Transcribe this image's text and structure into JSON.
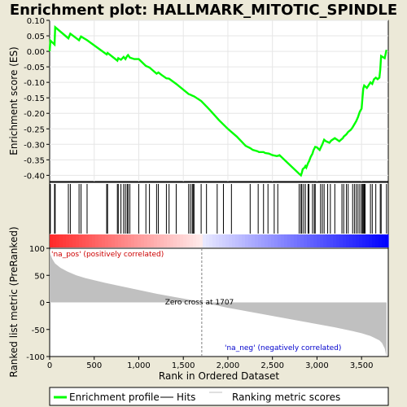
{
  "chart_data": {
    "type": "line",
    "title": "Enrichment plot: HALLMARK_MITOTIC_SPINDLE",
    "xlabel": "Rank in Ordered Dataset",
    "ylabel_top": "Enrichment score (ES)",
    "ylabel_bottom": "Ranked list metric (PreRanked)",
    "xlim": [
      0,
      3800
    ],
    "ylim_top": [
      -0.42,
      0.1
    ],
    "ylim_bottom": [
      -100,
      100
    ],
    "x_ticks": [
      {
        "v": 0,
        "label": "0"
      },
      {
        "v": 500,
        "label": "500"
      },
      {
        "v": 1000,
        "label": "1,000"
      },
      {
        "v": 1500,
        "label": "1,500"
      },
      {
        "v": 2000,
        "label": "2,000"
      },
      {
        "v": 2500,
        "label": "2,500"
      },
      {
        "v": 3000,
        "label": "3,000"
      },
      {
        "v": 3500,
        "label": "3,500"
      }
    ],
    "y_ticks_top": [
      {
        "v": 0.1,
        "label": "0.10"
      },
      {
        "v": 0.05,
        "label": "0.05"
      },
      {
        "v": 0.0,
        "label": "0.00"
      },
      {
        "v": -0.05,
        "label": "-0.05"
      },
      {
        "v": -0.1,
        "label": "-0.10"
      },
      {
        "v": -0.15,
        "label": "-0.15"
      },
      {
        "v": -0.2,
        "label": "-0.20"
      },
      {
        "v": -0.25,
        "label": "-0.25"
      },
      {
        "v": -0.3,
        "label": "-0.30"
      },
      {
        "v": -0.35,
        "label": "-0.35"
      },
      {
        "v": -0.4,
        "label": "-0.40"
      }
    ],
    "y_ticks_bottom": [
      {
        "v": 100,
        "label": "100"
      },
      {
        "v": 50,
        "label": "50"
      },
      {
        "v": 0,
        "label": "0"
      },
      {
        "v": -50,
        "label": "-50"
      },
      {
        "v": -100,
        "label": "-100"
      }
    ],
    "enrichment_profile": {
      "name": "Enrichment profile",
      "color": "#00ff00",
      "x": [
        0,
        8,
        55,
        62,
        210,
        232,
        330,
        352,
        420,
        640,
        650,
        760,
        770,
        800,
        830,
        850,
        870,
        880,
        900,
        950,
        1000,
        1080,
        1120,
        1200,
        1220,
        1250,
        1310,
        1340,
        1420,
        1560,
        1580,
        1600,
        1620,
        1700,
        1800,
        1900,
        2000,
        2100,
        2200,
        2250,
        2280,
        2330,
        2350,
        2400,
        2420,
        2460,
        2500,
        2550,
        2580,
        2800,
        2820,
        2830,
        2840,
        2860,
        2870,
        2880,
        2900,
        2910,
        2930,
        2950,
        2960,
        2980,
        3000,
        3030,
        3060,
        3080,
        3100,
        3140,
        3160,
        3200,
        3250,
        3290,
        3300,
        3330,
        3350,
        3380,
        3400,
        3420,
        3440,
        3460,
        3480,
        3500,
        3510,
        3520,
        3530,
        3560,
        3600,
        3620,
        3640,
        3660,
        3680,
        3700,
        3710,
        3720,
        3760,
        3780
      ],
      "y": [
        0.0,
        0.035,
        0.022,
        0.078,
        0.042,
        0.057,
        0.036,
        0.048,
        0.036,
        -0.01,
        -0.005,
        -0.03,
        -0.022,
        -0.027,
        -0.018,
        -0.025,
        -0.015,
        -0.012,
        -0.02,
        -0.025,
        -0.025,
        -0.047,
        -0.052,
        -0.072,
        -0.068,
        -0.075,
        -0.087,
        -0.088,
        -0.105,
        -0.138,
        -0.14,
        -0.143,
        -0.145,
        -0.16,
        -0.19,
        -0.222,
        -0.25,
        -0.275,
        -0.305,
        -0.312,
        -0.318,
        -0.322,
        -0.325,
        -0.325,
        -0.328,
        -0.33,
        -0.335,
        -0.338,
        -0.335,
        -0.395,
        -0.4,
        -0.392,
        -0.38,
        -0.375,
        -0.37,
        -0.375,
        -0.36,
        -0.355,
        -0.34,
        -0.33,
        -0.32,
        -0.308,
        -0.31,
        -0.318,
        -0.3,
        -0.285,
        -0.29,
        -0.295,
        -0.288,
        -0.28,
        -0.29,
        -0.28,
        -0.275,
        -0.268,
        -0.26,
        -0.253,
        -0.245,
        -0.235,
        -0.225,
        -0.212,
        -0.195,
        -0.185,
        -0.15,
        -0.12,
        -0.11,
        -0.118,
        -0.1,
        -0.105,
        -0.09,
        -0.085,
        -0.09,
        -0.085,
        -0.06,
        -0.015,
        -0.022,
        0.005
      ]
    },
    "hits": {
      "name": "Hits",
      "color": "#000000",
      "x": [
        8,
        55,
        62,
        210,
        232,
        330,
        352,
        420,
        640,
        650,
        760,
        770,
        800,
        830,
        850,
        870,
        880,
        900,
        1000,
        1080,
        1120,
        1200,
        1220,
        1310,
        1340,
        1420,
        1560,
        1580,
        1600,
        1610,
        1620,
        1700,
        1760,
        1880,
        1950,
        2040,
        2250,
        2340,
        2400,
        2450,
        2520,
        2560,
        2800,
        2820,
        2830,
        2850,
        2870,
        2900,
        2910,
        2950,
        2970,
        2980,
        3040,
        3060,
        3080,
        3120,
        3150,
        3200,
        3280,
        3300,
        3330,
        3350,
        3400,
        3420,
        3440,
        3460,
        3480,
        3500,
        3510,
        3520,
        3530,
        3540,
        3600,
        3620,
        3660,
        3710,
        3720,
        3780
      ]
    },
    "ranking_metric": {
      "name": "Ranking metric scores",
      "color": "#c0c0c0",
      "x": [
        0,
        10,
        30,
        60,
        120,
        200,
        300,
        400,
        500,
        600,
        800,
        1000,
        1200,
        1400,
        1600,
        1707,
        1800,
        2000,
        2200,
        2400,
        2600,
        2800,
        3000,
        3200,
        3400,
        3500,
        3600,
        3650,
        3700,
        3730,
        3760,
        3780
      ],
      "y": [
        100,
        88,
        80,
        72,
        64,
        57,
        50,
        45,
        41,
        37,
        30,
        23,
        16,
        10,
        4,
        0,
        -3,
        -10,
        -16,
        -22,
        -28,
        -34,
        -40,
        -46,
        -53,
        -57,
        -62,
        -66,
        -70,
        -75,
        -85,
        -100
      ]
    },
    "zero_cross": {
      "x": 1707,
      "label": "Zero cross at 1707"
    },
    "pos_label": "'na_pos' (positively correlated)",
    "neg_label": "'na_neg' (negatively correlated)",
    "legend_position": "bottom",
    "colors": {
      "background": "#ece9d8",
      "plot_bg": "#ffffff",
      "pos_red": "#ff0000",
      "neg_blue": "#0000ff",
      "zero_line": "#808080"
    }
  },
  "legend": {
    "enrichment": "Enrichment profile",
    "hits": "Hits",
    "ranking": "Ranking metric scores"
  }
}
